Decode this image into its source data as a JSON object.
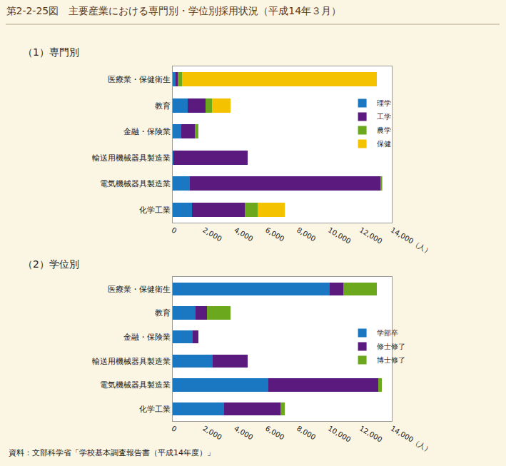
{
  "title": "第2-2-25図　主要産業における専門別・学位別採用状況（平成14年３月）",
  "source": "資料：文部科学省「学校基本調査報告書（平成14年度）」",
  "chart_data": [
    {
      "type": "bar",
      "title": "（1）専門別",
      "orientation": "horizontal",
      "stacked": true,
      "legend": "right",
      "categories": [
        "医療業・保健衛生",
        "教育",
        "金融・保険業",
        "輸送用機械器具製造業",
        "電気機械器具製造業",
        "化学工業"
      ],
      "series": [
        {
          "name": "理学",
          "color": "#1a78c2",
          "values": [
            180,
            960,
            550,
            60,
            1090,
            1230
          ]
        },
        {
          "name": "工学",
          "color": "#5b1a7d",
          "values": [
            150,
            1140,
            870,
            4730,
            12220,
            3370
          ]
        },
        {
          "name": "農学",
          "color": "#6ca81e",
          "values": [
            250,
            410,
            230,
            0,
            60,
            820
          ]
        },
        {
          "name": "保健",
          "color": "#f5c200",
          "values": [
            12460,
            1190,
            0,
            0,
            30,
            1730
          ]
        }
      ],
      "xlim": [
        0,
        14000
      ],
      "xticks": [
        0,
        {
          "value": 2000,
          "label": "2,000"
        },
        {
          "value": 4000,
          "label": "4,000"
        },
        {
          "value": 6000,
          "label": "6,000"
        },
        {
          "value": 8000,
          "label": "8,000"
        },
        {
          "value": 10000,
          "label": "10,000"
        },
        {
          "value": 12000,
          "label": "12,000"
        },
        {
          "value": 14000,
          "label": "14,000（人）"
        }
      ]
    },
    {
      "type": "bar",
      "title": "（2）学位別",
      "orientation": "horizontal",
      "stacked": true,
      "legend": "right",
      "categories": [
        "医療業・保健衛生",
        "教育",
        "金融・保険業",
        "輸送用機械器具製造業",
        "電気機械器具製造業",
        "化学工業"
      ],
      "series": [
        {
          "name": "学部卒",
          "color": "#1a78c2",
          "values": [
            10030,
            1460,
            1280,
            2550,
            6110,
            3280
          ]
        },
        {
          "name": "修士修了",
          "color": "#5b1a7d",
          "values": [
            870,
            730,
            370,
            2240,
            7020,
            3600
          ]
        },
        {
          "name": "博士修了",
          "color": "#6ca81e",
          "values": [
            2140,
            1510,
            0,
            0,
            230,
            270
          ]
        }
      ],
      "xlim": [
        0,
        14000
      ],
      "xticks": [
        0,
        {
          "value": 2000,
          "label": "2,000"
        },
        {
          "value": 4000,
          "label": "4,000"
        },
        {
          "value": 6000,
          "label": "6,000"
        },
        {
          "value": 8000,
          "label": "8,000"
        },
        {
          "value": 10000,
          "label": "10,000"
        },
        {
          "value": 12000,
          "label": "12,000"
        },
        {
          "value": 14000,
          "label": "14,000（人）"
        }
      ]
    }
  ]
}
